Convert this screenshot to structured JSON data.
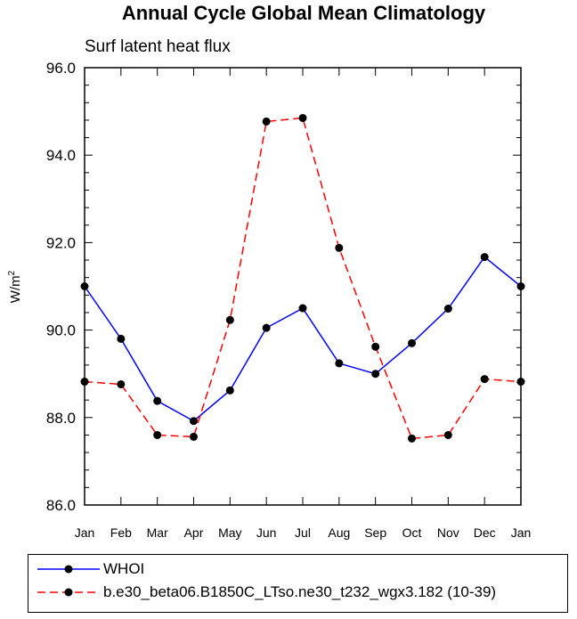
{
  "chart_data": {
    "type": "line",
    "title": "Annual Cycle Global Mean Climatology",
    "subtitle": "Surf latent heat flux",
    "ylabel_base": "W/m",
    "ylabel_sup": "2",
    "ylim": [
      86.0,
      96.0
    ],
    "yticks": [
      "86.0",
      "88.0",
      "90.0",
      "92.0",
      "94.0",
      "96.0"
    ],
    "categories": [
      "Jan",
      "Feb",
      "Mar",
      "Apr",
      "May",
      "Jun",
      "Jul",
      "Aug",
      "Sep",
      "Oct",
      "Nov",
      "Dec",
      "Jan"
    ],
    "series": [
      {
        "name": "WHOI",
        "color": "#0000ff",
        "dash": "solid",
        "values": [
          91.0,
          89.8,
          88.38,
          87.92,
          88.62,
          90.05,
          90.5,
          89.24,
          89.0,
          89.7,
          90.49,
          91.67,
          91.0
        ]
      },
      {
        "name": "b.e30_beta06.B1850C_LTso.ne30_t232_wgx3.182 (10-39)",
        "color": "#ff0000",
        "dash": "dashed",
        "values": [
          88.82,
          88.76,
          87.6,
          87.56,
          90.23,
          94.77,
          94.85,
          91.88,
          89.62,
          87.52,
          87.6,
          88.88,
          88.82
        ]
      }
    ],
    "grid": false,
    "legend": "bottom"
  }
}
